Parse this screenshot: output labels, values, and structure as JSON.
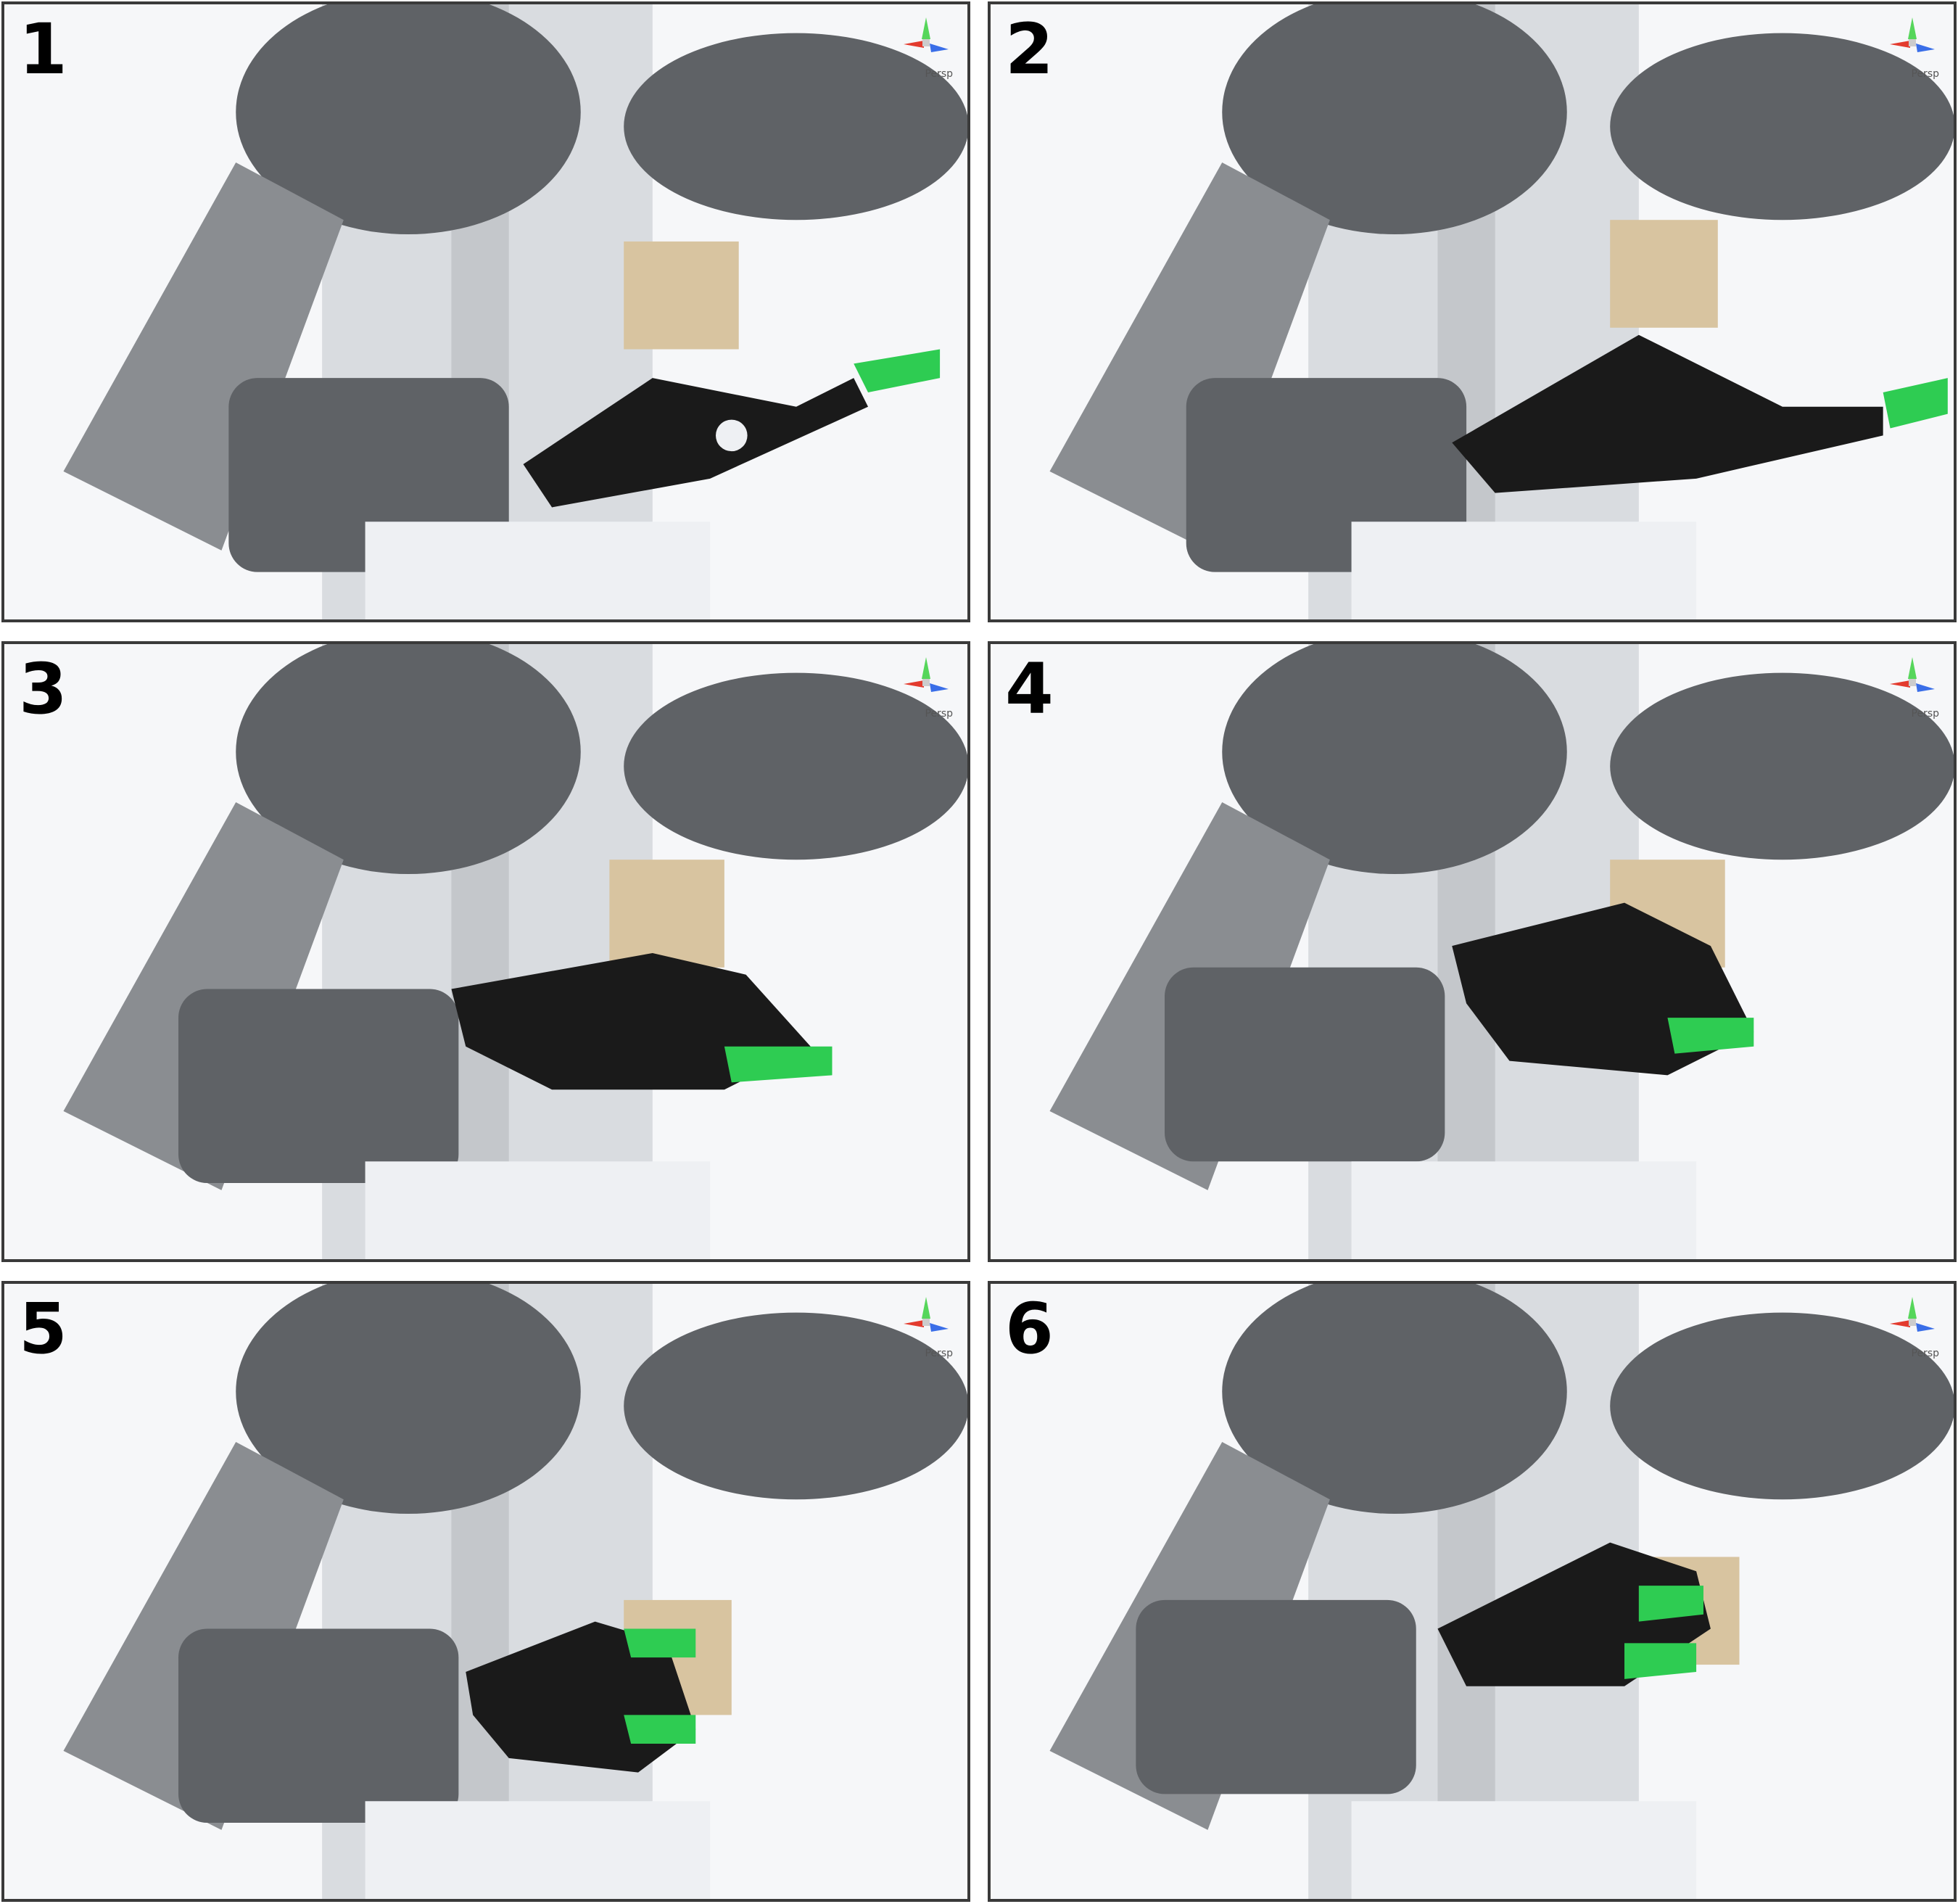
{
  "panels": [
    {
      "label": "1",
      "view": "Persp"
    },
    {
      "label": "2",
      "view": "Persp"
    },
    {
      "label": "3",
      "view": "Persp"
    },
    {
      "label": "4",
      "view": "Persp"
    },
    {
      "label": "5",
      "view": "Persp"
    },
    {
      "label": "6",
      "view": "Persp"
    }
  ],
  "colors": {
    "robot_dark": "#5f6266",
    "robot_mid": "#8a8d91",
    "robot_light": "#d9dce0",
    "robot_white": "#eef0f3",
    "hand_black": "#1a1a1a",
    "fingertip_green": "#2ecc52",
    "cube_wood": "#d8c4a0"
  }
}
